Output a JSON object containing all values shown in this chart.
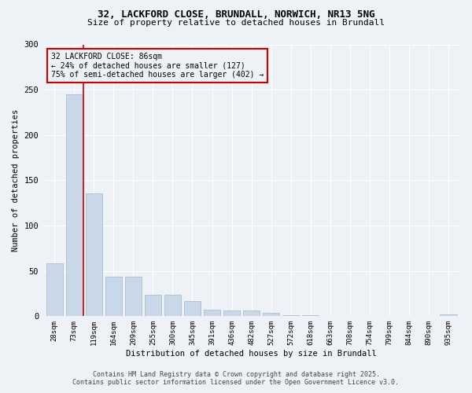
{
  "title_line1": "32, LACKFORD CLOSE, BRUNDALL, NORWICH, NR13 5NG",
  "title_line2": "Size of property relative to detached houses in Brundall",
  "xlabel": "Distribution of detached houses by size in Brundall",
  "ylabel": "Number of detached properties",
  "categories": [
    "28sqm",
    "73sqm",
    "119sqm",
    "164sqm",
    "209sqm",
    "255sqm",
    "300sqm",
    "345sqm",
    "391sqm",
    "436sqm",
    "482sqm",
    "527sqm",
    "572sqm",
    "618sqm",
    "663sqm",
    "708sqm",
    "754sqm",
    "799sqm",
    "844sqm",
    "890sqm",
    "935sqm"
  ],
  "values": [
    58,
    245,
    136,
    44,
    44,
    24,
    24,
    17,
    7,
    6,
    6,
    4,
    1,
    1,
    0,
    0,
    0,
    0,
    0,
    0,
    2
  ],
  "bar_color": "#c8d8e8",
  "bar_edgecolor": "#a0b8cc",
  "vline_x": 1.48,
  "vline_color": "#cc0000",
  "annotation_title": "32 LACKFORD CLOSE: 86sqm",
  "annotation_line2": "← 24% of detached houses are smaller (127)",
  "annotation_line3": "75% of semi-detached houses are larger (402) →",
  "annotation_box_color": "#cc0000",
  "ylim": [
    0,
    300
  ],
  "yticks": [
    0,
    50,
    100,
    150,
    200,
    250,
    300
  ],
  "footer_line1": "Contains HM Land Registry data © Crown copyright and database right 2025.",
  "footer_line2": "Contains public sector information licensed under the Open Government Licence v3.0.",
  "bg_color": "#eef2f7",
  "grid_color": "#ffffff"
}
